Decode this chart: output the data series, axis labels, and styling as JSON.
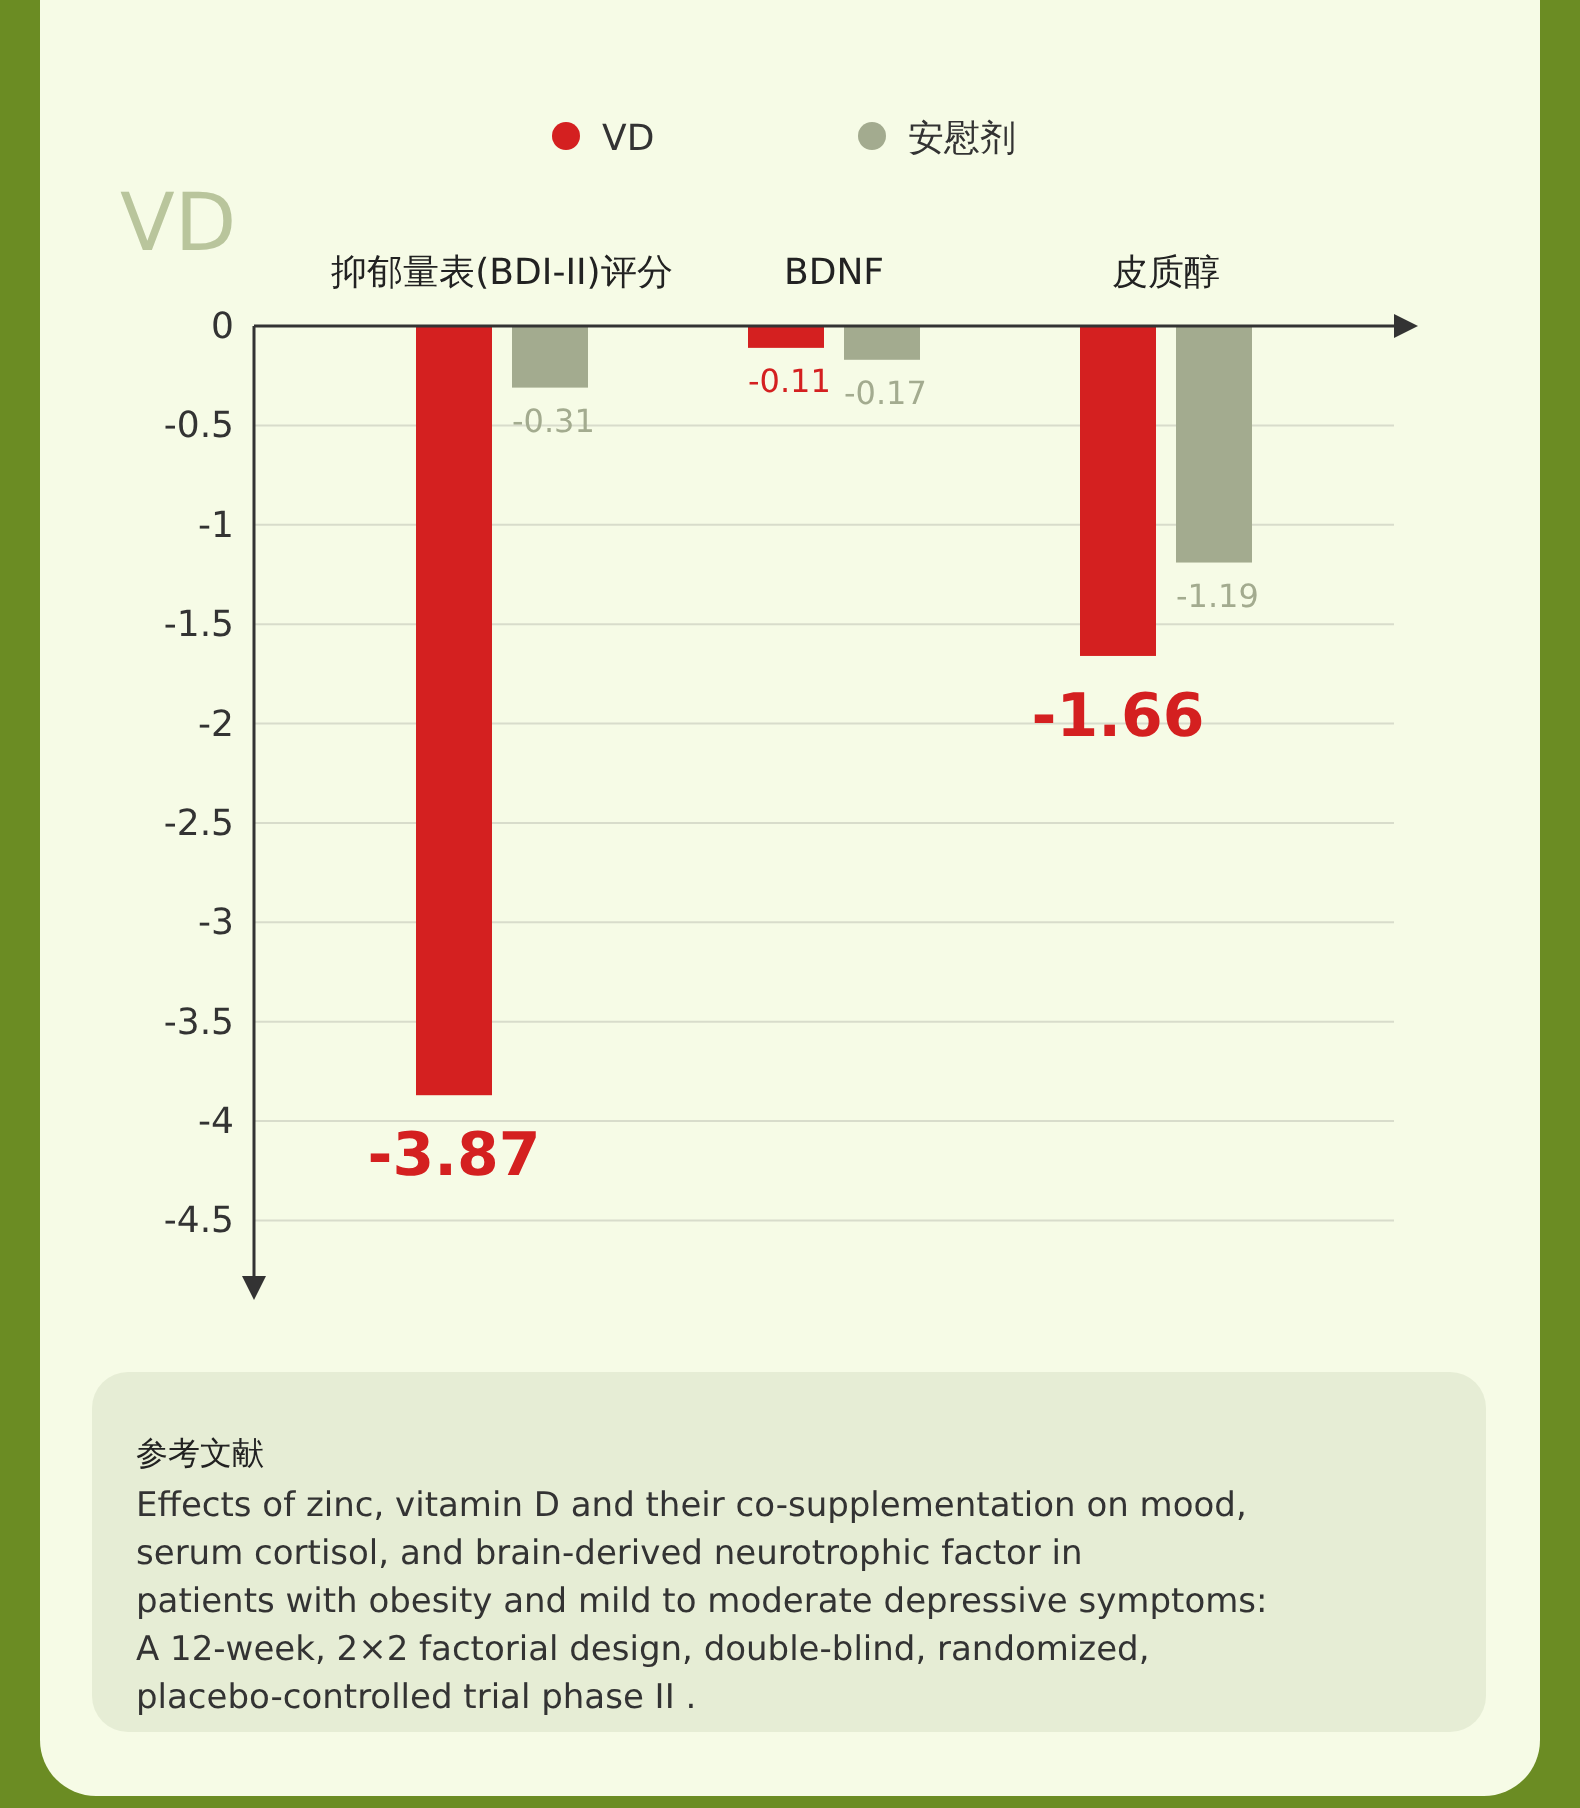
{
  "chart_data": {
    "type": "bar",
    "categories": [
      "抑郁量表(BDI-II)评分",
      "BDNF",
      "皮质醇"
    ],
    "series": [
      {
        "name": "VD",
        "color": "#d42020",
        "values": [
          -3.87,
          -0.11,
          -1.66
        ]
      },
      {
        "name": "安慰剂",
        "color": "#a3ab8f",
        "values": [
          -0.31,
          -0.17,
          -1.19
        ]
      }
    ],
    "ylim": [
      -4.85,
      0
    ],
    "yticks": [
      0,
      -0.5,
      -1,
      -1.5,
      -2,
      -2.5,
      -3,
      -3.5,
      -4,
      -4.5
    ],
    "grid": "y",
    "legend": "top",
    "data_labels": true,
    "annotations": [
      "VD",
      "参考文献",
      "Effects of zinc, vitamin D and their co-supplementation on mood, serum cortisol, and brain-derived neurotrophic factor in patients with obesity and mild to moderate depressive symptoms: A 12-week, 2×2 factorial design, double-blind, randomized, placebo-controlled trial phase II ."
    ]
  }
}
